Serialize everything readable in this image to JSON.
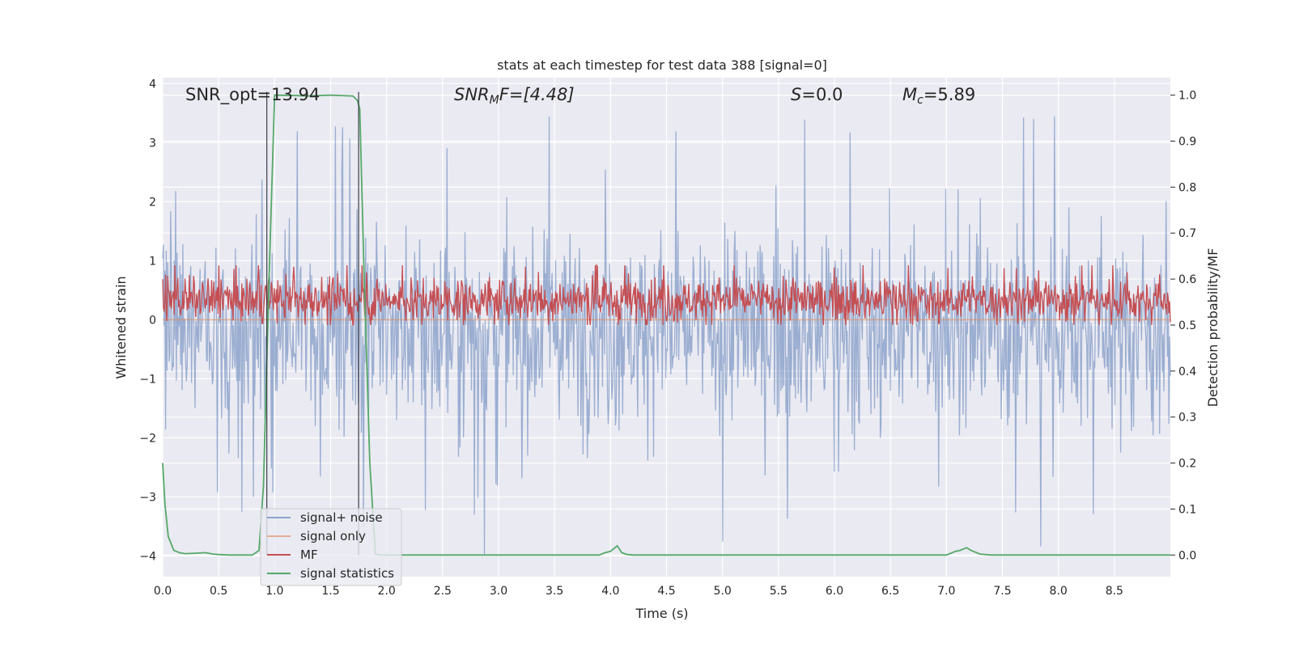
{
  "chart_data": {
    "type": "line",
    "title": "stats at each timestep for test data 388 [signal=0]",
    "xlabel": "Time (s)",
    "ylabel_left": "Whitened strain",
    "ylabel_right": "Detection probability/MF",
    "xlim": [
      0.0,
      9.0
    ],
    "ylim_left": [
      -4.35,
      4.1
    ],
    "ylim_right": [
      -0.047,
      1.038
    ],
    "x_ticks": [
      "0.0",
      "0.5",
      "1.0",
      "1.5",
      "2.0",
      "2.5",
      "3.0",
      "3.5",
      "4.0",
      "4.5",
      "5.0",
      "5.5",
      "6.0",
      "6.5",
      "7.0",
      "7.5",
      "8.0",
      "8.5"
    ],
    "x_tick_values": [
      0.0,
      0.5,
      1.0,
      1.5,
      2.0,
      2.5,
      3.0,
      3.5,
      4.0,
      4.5,
      5.0,
      5.5,
      6.0,
      6.5,
      7.0,
      7.5,
      8.0,
      8.5
    ],
    "y_left_ticks": [
      "−4",
      "−3",
      "−2",
      "−1",
      "0",
      "1",
      "2",
      "3",
      "4"
    ],
    "y_left_tick_values": [
      -4,
      -3,
      -2,
      -1,
      0,
      1,
      2,
      3,
      4
    ],
    "y_right_ticks": [
      "0.0",
      "0.1",
      "0.2",
      "0.3",
      "0.4",
      "0.5",
      "0.6",
      "0.7",
      "0.8",
      "0.9",
      "1.0"
    ],
    "y_right_tick_values": [
      0.0,
      0.1,
      0.2,
      0.3,
      0.4,
      0.5,
      0.6,
      0.7,
      0.8,
      0.9,
      1.0
    ],
    "grid": true,
    "legend_position": "lower-left",
    "annotations": {
      "snr_opt": "SNR_opt=13.94",
      "snr_mf_prefix": "SNR",
      "snr_mf_sub": "M",
      "snr_mf_suffix": "F=[4.48]",
      "s_italic": "S",
      "s_value": "=0.0",
      "mc_italic": "M",
      "mc_sub": "c",
      "mc_value": "=5.89"
    },
    "vertical_markers": [
      0.93,
      1.75
    ],
    "series": [
      {
        "name": "signal+ noise",
        "color": "#4c72b0",
        "axis": "left",
        "kind": "noise",
        "band": [
          -1.7,
          1.4
        ],
        "peak_range": [
          -4.0,
          3.8
        ],
        "x_range": [
          0.0,
          9.0
        ]
      },
      {
        "name": "signal only",
        "color": "#dd8452",
        "axis": "left",
        "kind": "flat",
        "value": 0.0,
        "x_range": [
          0.0,
          9.0
        ]
      },
      {
        "name": "MF",
        "color": "#c44e52",
        "axis": "right",
        "kind": "noise",
        "band": [
          0.51,
          0.6
        ],
        "peak_range": [
          0.5,
          0.63
        ],
        "x_range": [
          0.0,
          9.0
        ]
      },
      {
        "name": "signal statistics",
        "color": "#55a868",
        "axis": "right",
        "kind": "line",
        "x": [
          0.0,
          0.02,
          0.05,
          0.1,
          0.15,
          0.2,
          0.3,
          0.38,
          0.45,
          0.5,
          0.6,
          0.8,
          0.86,
          0.9,
          0.95,
          1.0,
          1.2,
          1.3,
          1.5,
          1.7,
          1.74,
          1.76,
          1.8,
          1.85,
          1.9,
          1.95,
          2.0,
          2.5,
          3.0,
          3.5,
          3.9,
          3.95,
          4.0,
          4.06,
          4.1,
          4.15,
          4.2,
          4.5,
          5.0,
          6.0,
          7.0,
          7.08,
          7.12,
          7.18,
          7.22,
          7.3,
          7.4,
          8.0,
          9.0
        ],
        "y": [
          0.2,
          0.11,
          0.04,
          0.01,
          0.005,
          0.003,
          0.004,
          0.005,
          0.002,
          0.001,
          0.0,
          0.0,
          0.01,
          0.15,
          0.6,
          1.0,
          0.999,
          0.998,
          1.0,
          0.998,
          0.988,
          0.97,
          0.6,
          0.2,
          0.002,
          0.0,
          0.0,
          0.0,
          0.0,
          0.0,
          0.0,
          0.005,
          0.008,
          0.02,
          0.005,
          0.001,
          0.0,
          0.0,
          0.0,
          0.0,
          0.0,
          0.008,
          0.01,
          0.016,
          0.01,
          0.002,
          0.0,
          0.0,
          0.0
        ]
      }
    ]
  }
}
